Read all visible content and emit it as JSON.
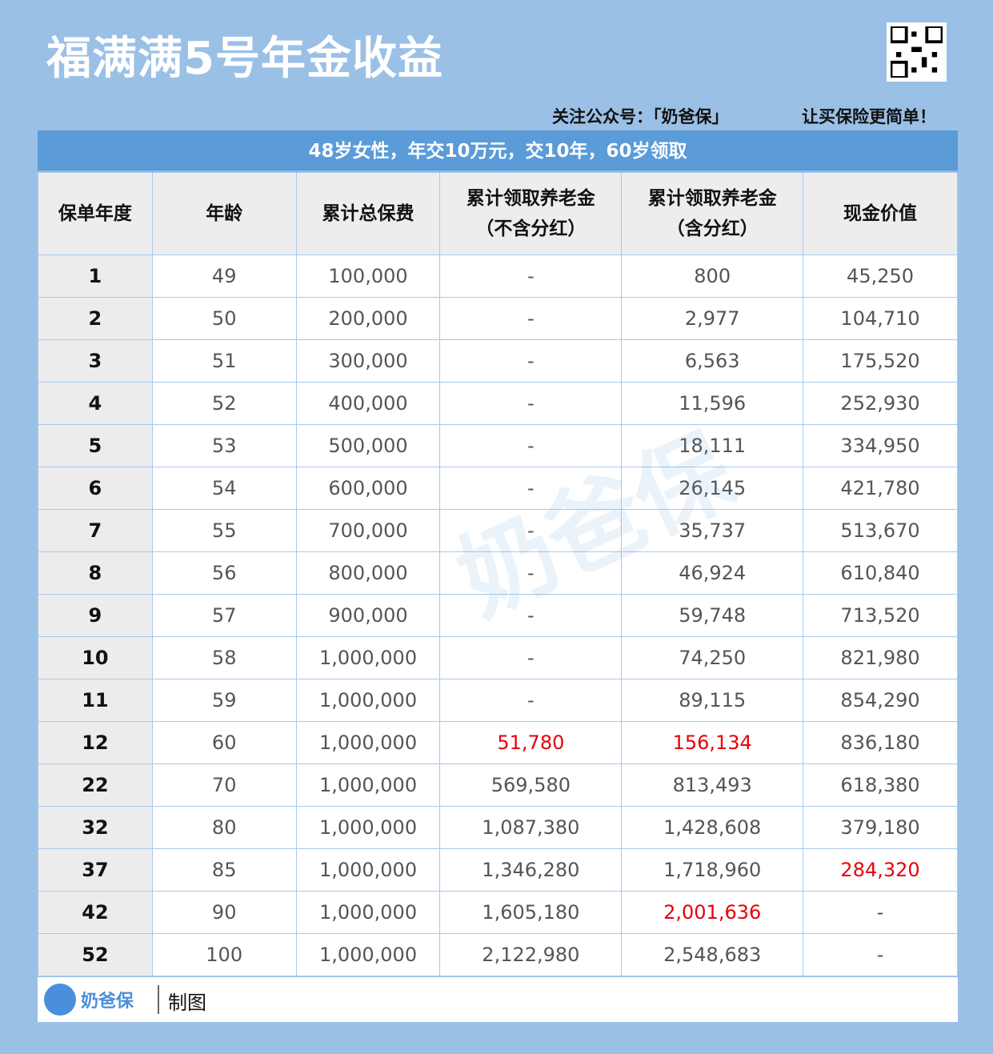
{
  "title": "福满满5号年金收益",
  "follow_text": "关注公众号：「奶爸保」",
  "slogan": "让买保险更简单！",
  "banner": "48岁女性，年交10万元，交10年，60岁领取",
  "headers": [
    "保单年度",
    "年龄",
    "累计总保费",
    "累计领取养老金\n（不含分红）",
    "累计领取养老金\n（含分红）",
    "现金价值"
  ],
  "rows": [
    [
      "1",
      "49",
      "100,000",
      "-",
      "800",
      "45,250"
    ],
    [
      "2",
      "50",
      "200,000",
      "-",
      "2,977",
      "104,710"
    ],
    [
      "3",
      "51",
      "300,000",
      "-",
      "6,563",
      "175,520"
    ],
    [
      "4",
      "52",
      "400,000",
      "-",
      "11,596",
      "252,930"
    ],
    [
      "5",
      "53",
      "500,000",
      "-",
      "18,111",
      "334,950"
    ],
    [
      "6",
      "54",
      "600,000",
      "-",
      "26,145",
      "421,780"
    ],
    [
      "7",
      "55",
      "700,000",
      "-",
      "35,737",
      "513,670"
    ],
    [
      "8",
      "56",
      "800,000",
      "-",
      "46,924",
      "610,840"
    ],
    [
      "9",
      "57",
      "900,000",
      "-",
      "59,748",
      "713,520"
    ],
    [
      "10",
      "58",
      "1,000,000",
      "-",
      "74,250",
      "821,980"
    ],
    [
      "11",
      "59",
      "1,000,000",
      "-",
      "89,115",
      "854,290"
    ],
    [
      "12",
      "60",
      "1,000,000",
      "51,780",
      "156,134",
      "836,180"
    ],
    [
      "22",
      "70",
      "1,000,000",
      "569,580",
      "813,493",
      "618,380"
    ],
    [
      "32",
      "80",
      "1,000,000",
      "1,087,380",
      "1,428,608",
      "379,180"
    ],
    [
      "37",
      "85",
      "1,000,000",
      "1,346,280",
      "1,718,960",
      "284,320"
    ],
    [
      "42",
      "90",
      "1,000,000",
      "1,605,180",
      "2,001,636",
      "-"
    ],
    [
      "52",
      "100",
      "1,000,000",
      "2,122,980",
      "2,548,683",
      "-"
    ]
  ],
  "highlight_cells": [
    [
      11,
      3
    ],
    [
      11,
      4
    ],
    [
      14,
      5
    ],
    [
      15,
      4
    ]
  ],
  "highlight_color": "#e8000b",
  "accent_color": "#5a9bd8",
  "footer": {
    "logo_text": "奶爸保",
    "logo_slogan": "让买保险更简单",
    "made_by": "制图"
  },
  "watermark": "奶爸保"
}
